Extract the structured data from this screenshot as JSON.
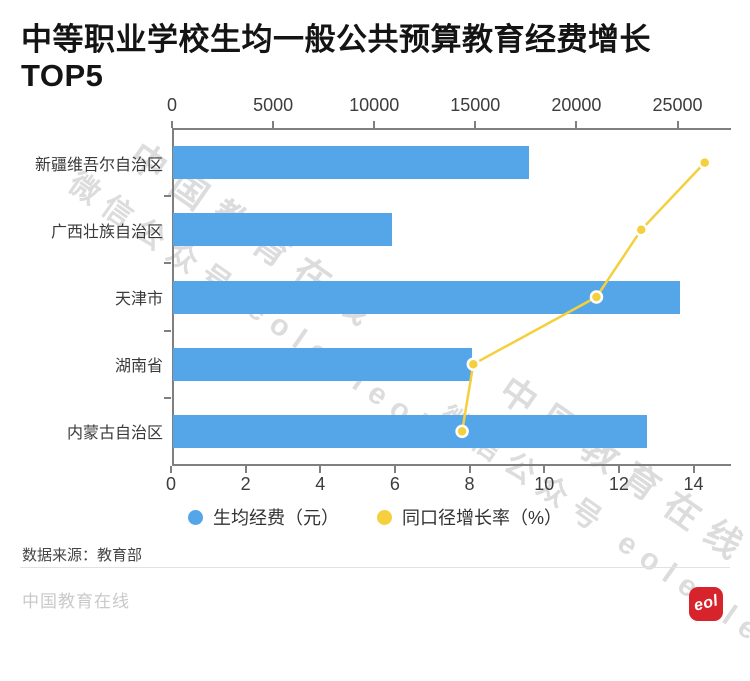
{
  "title": "中等职业学校生均一般公共预算教育经费增长TOP5",
  "watermark": {
    "line1": "中国教育在线",
    "line2": "微信公众号 eoleoleol"
  },
  "chart_data": {
    "type": "bar",
    "orientation": "horizontal",
    "categories": [
      "新疆维吾尔自治区",
      "广西壮族自治区",
      "天津市",
      "湖南省",
      "内蒙古自治区"
    ],
    "series": [
      {
        "name": "生均经费（元）",
        "type": "bar",
        "axis": "top",
        "values": [
          17655,
          10880,
          25110,
          14825,
          23490
        ]
      },
      {
        "name": "同口径增长率（%）",
        "type": "line",
        "axis": "bottom",
        "values": [
          14.3,
          12.6,
          11.4,
          8.1,
          7.8
        ]
      }
    ],
    "value_axis": {
      "position": "top",
      "min": 0,
      "max": 25000,
      "ticks": [
        0,
        5000,
        10000,
        15000,
        20000,
        25000
      ]
    },
    "percent_axis": {
      "position": "bottom",
      "min": 0,
      "max": 14,
      "ticks": [
        0,
        2,
        4,
        6,
        8,
        10,
        12,
        14
      ]
    },
    "grid": false,
    "legend_position": "bottom",
    "colors": {
      "bar": "#55a6e8",
      "line": "#f5d03e",
      "axis": "#7f7f7f"
    }
  },
  "legend": [
    {
      "label": "生均经费（元）",
      "color": "#55a6e8"
    },
    {
      "label": "同口径增长率（%）",
      "color": "#f5d03e"
    }
  ],
  "source": "数据来源：教育部",
  "footer": {
    "brand": "中国教育在线",
    "logo_text": "eol"
  }
}
